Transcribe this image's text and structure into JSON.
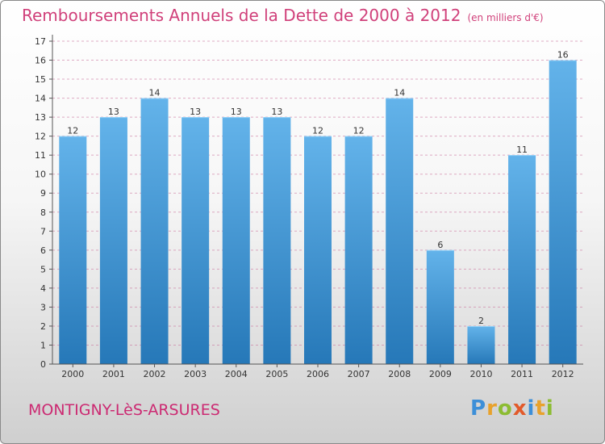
{
  "header": {
    "title": "Remboursements Annuels de la Dette de 2000 à 2012",
    "unit": "(en milliers d'€)"
  },
  "footer": {
    "commune": "MONTIGNY-LèS-ARSURES",
    "logo": "Proxiti"
  },
  "colors": {
    "title": "#d0407a",
    "bar_top": "#63b3ea",
    "bar_bottom": "#2678b8",
    "grid": "#c86a96"
  },
  "chart_data": {
    "type": "bar",
    "title": "Remboursements Annuels de la Dette de 2000 à 2012",
    "categories": [
      "2000",
      "2001",
      "2002",
      "2003",
      "2004",
      "2005",
      "2006",
      "2007",
      "2008",
      "2009",
      "2010",
      "2011",
      "2012"
    ],
    "values": [
      12,
      13,
      14,
      13,
      13,
      13,
      12,
      12,
      14,
      6,
      2,
      11,
      16
    ],
    "ylim": [
      0,
      17
    ],
    "yticks": [
      0,
      1,
      2,
      3,
      4,
      5,
      6,
      7,
      8,
      9,
      10,
      11,
      12,
      13,
      14,
      15,
      16,
      17
    ],
    "grid": true,
    "data_labels": true
  }
}
